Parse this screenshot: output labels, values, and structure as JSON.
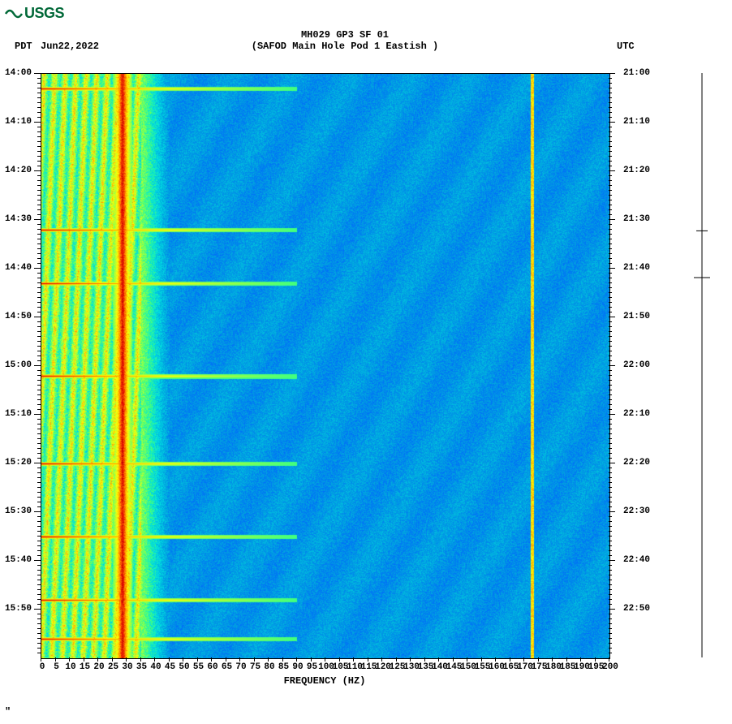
{
  "logo_text": "USGS",
  "header": {
    "tz_left": "PDT",
    "date": "Jun22,2022",
    "title_line1": "MH029 GP3 SF 01",
    "title_line2": "(SAFOD Main Hole Pod 1 Eastish )",
    "tz_right": "UTC"
  },
  "footer_mark": "\"",
  "spectrogram": {
    "type": "spectrogram",
    "x_label": "FREQUENCY (HZ)",
    "x_range": [
      0,
      200
    ],
    "x_tick_step": 5,
    "y_left_ticks": [
      "14:00",
      "14:10",
      "14:20",
      "14:30",
      "14:40",
      "14:50",
      "15:00",
      "15:10",
      "15:20",
      "15:30",
      "15:40",
      "15:50"
    ],
    "y_right_ticks": [
      "21:00",
      "21:10",
      "21:20",
      "21:30",
      "21:40",
      "21:50",
      "22:00",
      "22:10",
      "22:20",
      "22:30",
      "22:40",
      "22:50"
    ],
    "y_minor_per_major": 10,
    "title_fontsize": 12,
    "label_fontsize": 11,
    "background_color": "#ffffff",
    "colormap": [
      {
        "v": 0.0,
        "c": "#000080"
      },
      {
        "v": 0.15,
        "c": "#0060ff"
      },
      {
        "v": 0.3,
        "c": "#00a0e0"
      },
      {
        "v": 0.45,
        "c": "#00e0e0"
      },
      {
        "v": 0.55,
        "c": "#40ff80"
      },
      {
        "v": 0.65,
        "c": "#a0ff40"
      },
      {
        "v": 0.75,
        "c": "#ffff00"
      },
      {
        "v": 0.85,
        "c": "#ff8000"
      },
      {
        "v": 0.95,
        "c": "#e00000"
      },
      {
        "v": 1.0,
        "c": "#800000"
      }
    ],
    "hot_band_hz": [
      25,
      32
    ],
    "hot_band_intensity": 0.95,
    "warm_zone_hz": [
      0,
      35
    ],
    "warm_zone_base": 0.62,
    "transition_hz": [
      35,
      45
    ],
    "cool_zone_hz": [
      45,
      200
    ],
    "cool_zone_base": 0.28,
    "narrow_line_hz": 173,
    "narrow_line_intensity": 0.78,
    "horizontal_events_min": [
      3,
      32,
      43,
      62,
      80,
      95,
      108,
      116
    ],
    "event_burst_extent_hz": 90,
    "noise_granularity": 0.2
  },
  "scale_bar": {
    "ticks_top": 0.55,
    "marker_pos": 0.78
  }
}
